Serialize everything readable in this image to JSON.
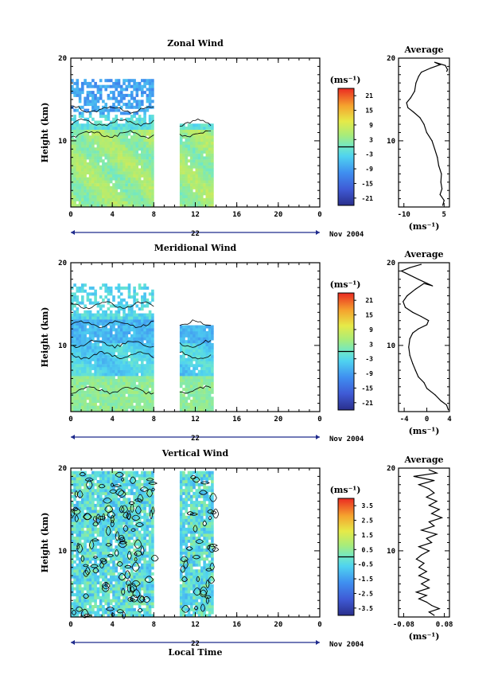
{
  "chart_data": [
    {
      "type": "heatmap",
      "title": "Zonal Wind",
      "ylabel": "Height (km)",
      "xlabel": "",
      "xlim": [
        0,
        24
      ],
      "ylim": [
        2,
        20
      ],
      "xticks": [
        "0",
        "4",
        "8",
        "12",
        "16",
        "20",
        "0"
      ],
      "yticks": [
        "10",
        "20"
      ],
      "date_row": {
        "day": "22",
        "month": "Nov 2004"
      },
      "colorbar": {
        "unit": "(ms⁻¹)",
        "labels": [
          "21",
          "15",
          "9",
          "3",
          "-3",
          "-9",
          "-15",
          "-21"
        ],
        "range": [
          -24,
          24
        ]
      },
      "data_segments": [
        [
          0,
          8
        ],
        [
          10.5,
          13.7
        ]
      ],
      "pattern": "zonal",
      "profile": {
        "title": "Average",
        "xlabel": "(ms⁻¹)",
        "xticks": [
          "-10",
          "5"
        ],
        "xlim": [
          -12,
          7
        ],
        "ylim": [
          2,
          20
        ],
        "yticks": [
          "10",
          "20"
        ],
        "points": [
          [
            4.5,
            2.2
          ],
          [
            5,
            2.8
          ],
          [
            3.5,
            3.5
          ],
          [
            4.2,
            4.2
          ],
          [
            3.8,
            5
          ],
          [
            4,
            6
          ],
          [
            3,
            7
          ],
          [
            2.5,
            8
          ],
          [
            1.5,
            9
          ],
          [
            0.5,
            10
          ],
          [
            -1.5,
            11
          ],
          [
            -2.5,
            12
          ],
          [
            -4,
            12.8
          ],
          [
            -6.5,
            13.5
          ],
          [
            -8.5,
            14
          ],
          [
            -9,
            14.6
          ],
          [
            -7.5,
            15.2
          ],
          [
            -6,
            16
          ],
          [
            -5.5,
            17
          ],
          [
            -4.5,
            17.8
          ],
          [
            -3.5,
            18.3
          ],
          [
            0,
            18.8
          ],
          [
            3.5,
            19.2
          ],
          [
            1.5,
            19.5
          ],
          [
            5.5,
            19.1
          ],
          [
            6.3,
            18.6
          ],
          [
            6,
            18.4
          ]
        ]
      }
    },
    {
      "type": "heatmap",
      "title": "Meridional Wind",
      "ylabel": "Height (km)",
      "xlabel": "",
      "xlim": [
        0,
        24
      ],
      "ylim": [
        2,
        20
      ],
      "xticks": [
        "0",
        "4",
        "8",
        "12",
        "16",
        "20",
        "0"
      ],
      "yticks": [
        "10",
        "20"
      ],
      "date_row": {
        "day": "22",
        "month": "Nov 2004"
      },
      "colorbar": {
        "unit": "(ms⁻¹)",
        "labels": [
          "21",
          "15",
          "9",
          "3",
          "-3",
          "-9",
          "-15",
          "-21"
        ],
        "range": [
          -24,
          24
        ]
      },
      "data_segments": [
        [
          0,
          8
        ],
        [
          10.5,
          13.7
        ]
      ],
      "pattern": "meridional",
      "profile": {
        "title": "Average",
        "xlabel": "(ms⁻¹)",
        "xticks": [
          "-4",
          "0",
          "4"
        ],
        "xlim": [
          -5,
          4
        ],
        "ylim": [
          2,
          20
        ],
        "yticks": [
          "10",
          "20"
        ],
        "points": [
          [
            3.8,
            2.2
          ],
          [
            3.5,
            2.8
          ],
          [
            2.5,
            3.3
          ],
          [
            1.5,
            4
          ],
          [
            0,
            4.8
          ],
          [
            -0.5,
            5.5
          ],
          [
            -1.5,
            6.2
          ],
          [
            -2,
            7
          ],
          [
            -2.5,
            7.8
          ],
          [
            -3,
            8.8
          ],
          [
            -3.2,
            9.8
          ],
          [
            -3,
            10.8
          ],
          [
            -2.5,
            11.5
          ],
          [
            -1.5,
            12
          ],
          [
            0,
            12.5
          ],
          [
            0.3,
            13
          ],
          [
            -1,
            13.5
          ],
          [
            -2.5,
            14
          ],
          [
            -3.8,
            14.6
          ],
          [
            -4.2,
            15.3
          ],
          [
            -3.5,
            16
          ],
          [
            -2,
            16.8
          ],
          [
            -0.5,
            17.5
          ],
          [
            1,
            17.2
          ],
          [
            -1.5,
            18
          ],
          [
            -3,
            18.5
          ],
          [
            -4.5,
            19
          ],
          [
            -3,
            19.4
          ],
          [
            -1,
            19.8
          ]
        ]
      }
    },
    {
      "type": "heatmap",
      "title": "Vertical Wind",
      "ylabel": "Height (km)",
      "xlabel": "Local Time",
      "xlim": [
        0,
        24
      ],
      "ylim": [
        2,
        20
      ],
      "xticks": [
        "0",
        "4",
        "8",
        "12",
        "16",
        "20",
        "0"
      ],
      "yticks": [
        "10",
        "20"
      ],
      "date_row": {
        "day": "22",
        "month": "Nov 2004"
      },
      "colorbar": {
        "unit": "(ms⁻¹)",
        "labels": [
          "3.5",
          "2.5",
          "1.5",
          "0.5",
          "-0.5",
          "-1.5",
          "-2.5",
          "-3.5"
        ],
        "range": [
          -4,
          4
        ]
      },
      "data_segments": [
        [
          0,
          8
        ],
        [
          10.5,
          13.7
        ]
      ],
      "pattern": "vertical",
      "profile": {
        "title": "Average",
        "xlabel": "(ms⁻¹)",
        "xticks": [
          "-0.08",
          "0.08"
        ],
        "xlim": [
          -0.1,
          0.1
        ],
        "ylim": [
          2,
          20
        ],
        "yticks": [
          "10",
          "20"
        ],
        "points": [
          [
            0.04,
            2.2
          ],
          [
            0.02,
            2.6
          ],
          [
            0.06,
            3
          ],
          [
            0.03,
            3.4
          ],
          [
            0.01,
            3.8
          ],
          [
            -0.02,
            4.2
          ],
          [
            0.01,
            4.6
          ],
          [
            -0.03,
            5
          ],
          [
            0.02,
            5.5
          ],
          [
            -0.01,
            6
          ],
          [
            0.02,
            6.5
          ],
          [
            -0.02,
            7
          ],
          [
            0.01,
            7.5
          ],
          [
            -0.02,
            8
          ],
          [
            0,
            8.5
          ],
          [
            -0.03,
            9
          ],
          [
            -0.01,
            9.5
          ],
          [
            0.02,
            10
          ],
          [
            -0.02,
            10.5
          ],
          [
            0.03,
            11
          ],
          [
            0.01,
            11.5
          ],
          [
            0.05,
            12
          ],
          [
            -0.01,
            12.5
          ],
          [
            0.04,
            13
          ],
          [
            0.02,
            13.5
          ],
          [
            0.07,
            14
          ],
          [
            0.03,
            14.5
          ],
          [
            0.06,
            15
          ],
          [
            0.02,
            15.5
          ],
          [
            0.05,
            16
          ],
          [
            0.01,
            16.5
          ],
          [
            0.04,
            17
          ],
          [
            0.02,
            17.5
          ],
          [
            -0.02,
            18
          ],
          [
            0.04,
            18.5
          ],
          [
            -0.04,
            19
          ],
          [
            0.05,
            19.4
          ],
          [
            0.02,
            19.8
          ]
        ]
      }
    }
  ]
}
